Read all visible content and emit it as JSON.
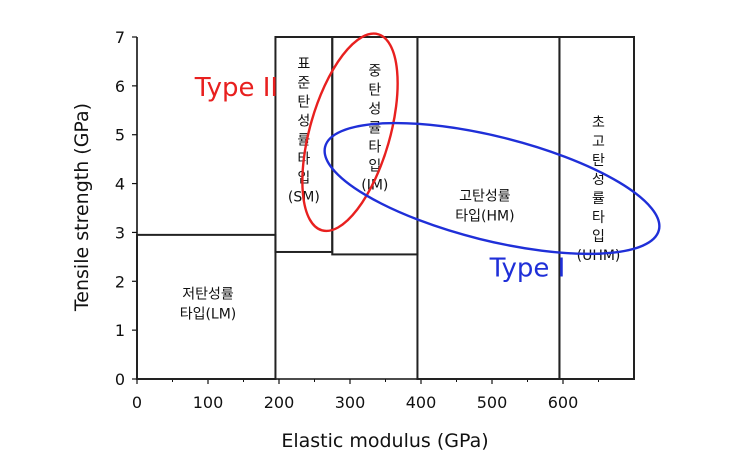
{
  "chart_data": {
    "type": "region",
    "xlabel": "Elastic modulus (GPa)",
    "ylabel": "Tensile strength (GPa)",
    "xlim": [
      0,
      700
    ],
    "ylim": [
      0,
      7
    ],
    "xticks": [
      "0",
      "100",
      "200",
      "300",
      "400",
      "500",
      "600"
    ],
    "xtick_values": [
      0,
      100,
      200,
      300,
      400,
      500,
      600
    ],
    "yticks": [
      "0",
      "1",
      "2",
      "3",
      "4",
      "5",
      "6",
      "7"
    ],
    "ytick_values": [
      0,
      1,
      2,
      3,
      4,
      5,
      6,
      7
    ],
    "regions": [
      {
        "id": "LM",
        "x": [
          0,
          195
        ],
        "y": [
          0,
          2.95
        ],
        "lines": [
          "저탄성률",
          "타입(LM)"
        ],
        "label_at": [
          100,
          1.55
        ]
      },
      {
        "id": "SM",
        "x": [
          195,
          275
        ],
        "y": [
          2.6,
          7
        ],
        "lines": [
          "표",
          "준",
          "탄",
          "성",
          "률",
          "타",
          "입",
          "(SM)"
        ],
        "label_at": [
          235,
          5.1
        ]
      },
      {
        "id": "IM",
        "x": [
          275,
          395
        ],
        "y": [
          2.55,
          7
        ],
        "lines": [
          "중",
          "탄",
          "성",
          "률",
          "타",
          "입",
          "(IM)"
        ],
        "label_at": [
          335,
          5.15
        ]
      },
      {
        "id": "HM",
        "x": [
          395,
          595
        ],
        "y": [
          0,
          7
        ],
        "lines": [
          "고탄성률",
          "타입(HM)"
        ],
        "label_at": [
          490,
          3.55
        ]
      },
      {
        "id": "UHM",
        "x": [
          595,
          700
        ],
        "y": [
          0,
          7
        ],
        "lines": [
          "초",
          "고",
          "탄",
          "성",
          "률",
          "타",
          "입",
          "(UHM)"
        ],
        "label_at": [
          650,
          3.9
        ]
      }
    ],
    "groups": [
      {
        "name": "Type II",
        "color": "#e8201f",
        "ellipse_center": [
          300,
          5.05
        ],
        "label_at": [
          140,
          6.0
        ]
      },
      {
        "name": "Type I",
        "color": "#1f2fd8",
        "ellipse_center": [
          500,
          3.9
        ],
        "label_at": [
          550,
          2.3
        ]
      }
    ]
  },
  "colors": {
    "type_ii": "#e8201f",
    "type_i": "#1f2fd8",
    "box_stroke": "#222222"
  }
}
